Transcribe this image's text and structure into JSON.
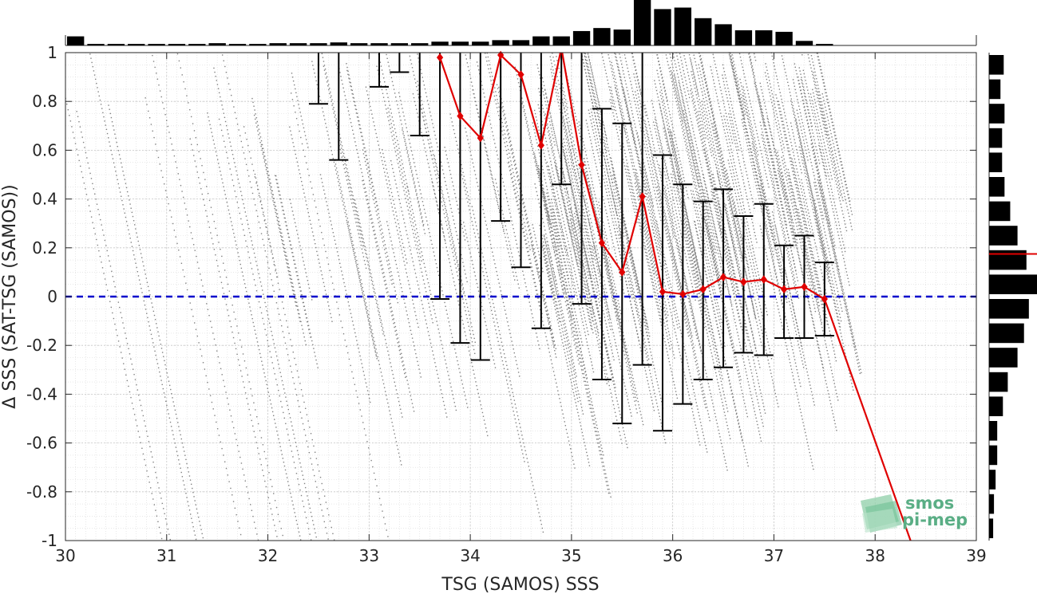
{
  "chart_data": {
    "type": "scatter",
    "xlabel": "TSG (SAMOS) SSS",
    "ylabel": "Δ SSS (SAT-TSG (SAMOS))",
    "xlim": [
      30,
      39
    ],
    "ylim": [
      -1,
      1
    ],
    "x_ticks": [
      30,
      31,
      32,
      33,
      34,
      35,
      36,
      37,
      38,
      39
    ],
    "y_ticks": [
      1,
      0.8,
      0.6,
      0.4,
      0.2,
      0,
      -0.2,
      -0.4,
      -0.6,
      -0.8,
      -1
    ],
    "x_tick_labels": [
      "30",
      "31",
      "32",
      "33",
      "34",
      "35",
      "36",
      "37",
      "38",
      "39"
    ],
    "y_tick_labels": [
      "1",
      "0.8",
      "0.6",
      "0.4",
      "0.2",
      "0",
      "-0.2",
      "-0.4",
      "-0.6",
      "-0.8",
      "-1"
    ],
    "grid": true,
    "zero_line": {
      "y": 0,
      "color": "#0000cc",
      "style": "dashed"
    },
    "binned_mean": {
      "color": "#e00000",
      "x": [
        33.7,
        33.9,
        34.1,
        34.3,
        34.5,
        34.7,
        34.9,
        35.1,
        35.3,
        35.5,
        35.7,
        35.9,
        36.1,
        36.3,
        36.5,
        36.7,
        36.9,
        37.1,
        37.3,
        37.5,
        38.35
      ],
      "y": [
        0.98,
        0.74,
        0.65,
        0.99,
        0.91,
        0.62,
        1.02,
        0.54,
        0.22,
        0.1,
        0.41,
        0.02,
        0.01,
        0.03,
        0.08,
        0.06,
        0.07,
        0.03,
        0.04,
        -0.01,
        -1.0
      ]
    },
    "error_bars": [
      {
        "x": 32.5,
        "lo": 0.79,
        "hi": 1.0
      },
      {
        "x": 32.7,
        "lo": 0.56,
        "hi": 1.0
      },
      {
        "x": 33.1,
        "lo": 0.86,
        "hi": 1.0
      },
      {
        "x": 33.3,
        "lo": 0.92,
        "hi": 1.0
      },
      {
        "x": 33.5,
        "lo": 0.66,
        "hi": 1.0
      },
      {
        "x": 33.7,
        "lo": -0.01,
        "hi": 1.0
      },
      {
        "x": 33.9,
        "lo": -0.19,
        "hi": 1.0
      },
      {
        "x": 34.1,
        "lo": -0.26,
        "hi": 1.0
      },
      {
        "x": 34.3,
        "lo": 0.31,
        "hi": 1.0
      },
      {
        "x": 34.5,
        "lo": 0.12,
        "hi": 1.0
      },
      {
        "x": 34.7,
        "lo": -0.13,
        "hi": 1.0
      },
      {
        "x": 34.9,
        "lo": 0.46,
        "hi": 1.0
      },
      {
        "x": 35.1,
        "lo": -0.03,
        "hi": 1.0
      },
      {
        "x": 35.3,
        "lo": -0.34,
        "hi": 0.77
      },
      {
        "x": 35.5,
        "lo": -0.52,
        "hi": 0.71
      },
      {
        "x": 35.7,
        "lo": -0.28,
        "hi": 1.0
      },
      {
        "x": 35.9,
        "lo": -0.55,
        "hi": 0.58
      },
      {
        "x": 36.1,
        "lo": -0.44,
        "hi": 0.46
      },
      {
        "x": 36.3,
        "lo": -0.34,
        "hi": 0.39
      },
      {
        "x": 36.5,
        "lo": -0.29,
        "hi": 0.44
      },
      {
        "x": 36.7,
        "lo": -0.23,
        "hi": 0.33
      },
      {
        "x": 36.9,
        "lo": -0.24,
        "hi": 0.38
      },
      {
        "x": 37.1,
        "lo": -0.17,
        "hi": 0.21
      },
      {
        "x": 37.3,
        "lo": -0.17,
        "hi": 0.25
      },
      {
        "x": 37.5,
        "lo": -0.16,
        "hi": 0.14
      }
    ],
    "top_histogram": {
      "bin_width": 0.2,
      "x": [
        30.1,
        30.3,
        30.5,
        30.7,
        30.9,
        31.1,
        31.3,
        31.5,
        31.7,
        31.9,
        32.1,
        32.3,
        32.5,
        32.7,
        32.9,
        33.1,
        33.3,
        33.5,
        33.7,
        33.9,
        34.1,
        34.3,
        34.5,
        34.7,
        34.9,
        35.1,
        35.3,
        35.5,
        35.7,
        35.9,
        36.1,
        36.3,
        36.5,
        36.7,
        36.9,
        37.1,
        37.3,
        37.5
      ],
      "counts": [
        12,
        2,
        2,
        2,
        2,
        2,
        2,
        3,
        2,
        2,
        3,
        3,
        3,
        4,
        3,
        3,
        3,
        3,
        5,
        5,
        5,
        7,
        7,
        12,
        12,
        19,
        23,
        21,
        60,
        48,
        50,
        36,
        28,
        20,
        20,
        18,
        6,
        2
      ]
    },
    "right_histogram": {
      "bin_width": 0.1,
      "y": [
        0.95,
        0.85,
        0.75,
        0.65,
        0.55,
        0.45,
        0.35,
        0.25,
        0.15,
        0.05,
        -0.05,
        -0.15,
        -0.25,
        -0.35,
        -0.45,
        -0.55,
        -0.65,
        -0.75,
        -0.85,
        -0.95
      ],
      "counts": [
        18,
        14,
        19,
        16,
        16,
        19,
        26,
        35,
        46,
        59,
        49,
        43,
        35,
        23,
        17,
        10,
        10,
        8,
        6,
        5
      ],
      "mean_marker": {
        "y": 0.175,
        "color": "#e00000"
      }
    },
    "scatter_style": {
      "color": "#808080"
    }
  },
  "logo": {
    "line1": "smos",
    "line2": "pi-mep"
  }
}
